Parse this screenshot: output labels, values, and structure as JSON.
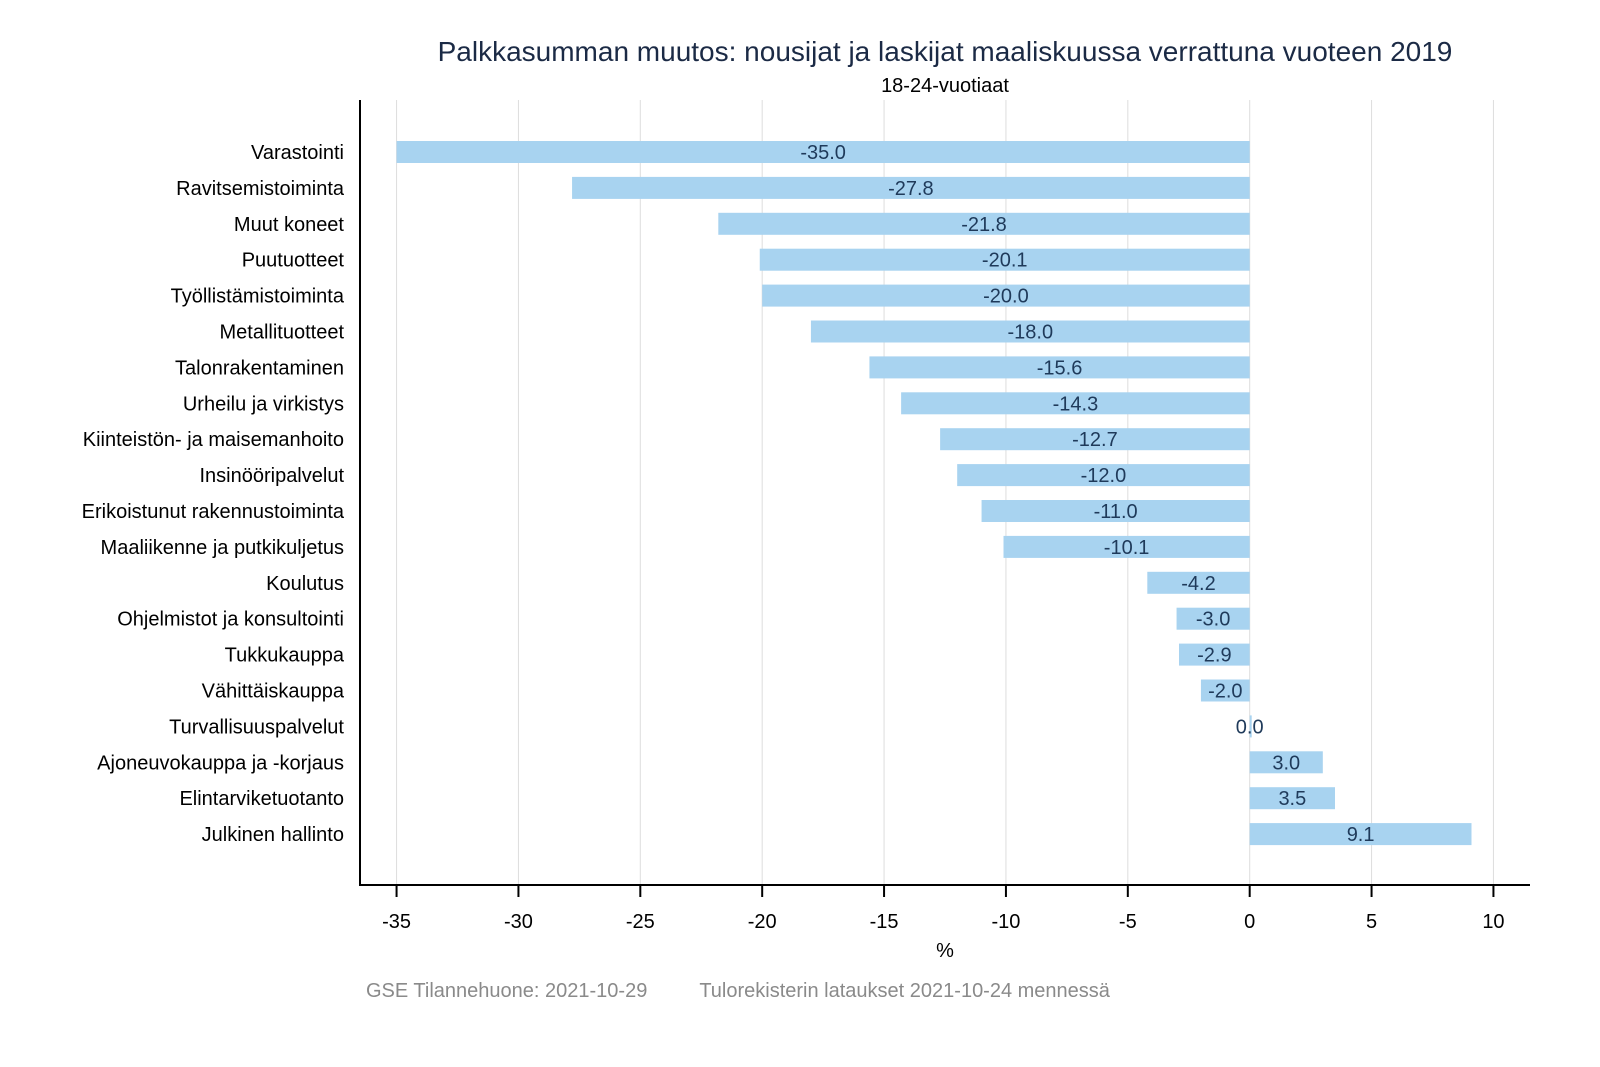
{
  "chart_data": {
    "type": "bar",
    "orientation": "horizontal",
    "title": "Palkkasumman muutos: nousijat ja laskijat maaliskuussa verrattuna vuoteen 2019",
    "subtitle": "18-24-vuotiaat",
    "xlabel": "%",
    "ylabel": "",
    "xlim": [
      -36.5,
      11.5
    ],
    "xticks": [
      -35,
      -30,
      -25,
      -20,
      -15,
      -10,
      -5,
      0,
      5,
      10
    ],
    "grid": true,
    "categories": [
      "Varastointi",
      "Ravitsemistoiminta",
      "Muut koneet",
      "Puutuotteet",
      "Työllistämistoiminta",
      "Metallituotteet",
      "Talonrakentaminen",
      "Urheilu ja virkistys",
      "Kiinteistön- ja maisemanhoito",
      "Insinööripalvelut",
      "Erikoistunut rakennustoiminta",
      "Maaliikenne ja putkikuljetus",
      "Koulutus",
      "Ohjelmistot ja konsultointi",
      "Tukkukauppa",
      "Vähittäiskauppa",
      "Turvallisuuspalvelut",
      "Ajoneuvokauppa ja -korjaus",
      "Elintarviketuotanto",
      "Julkinen hallinto"
    ],
    "values": [
      -35.0,
      -27.8,
      -21.8,
      -20.1,
      -20.0,
      -18.0,
      -15.6,
      -14.3,
      -12.7,
      -12.0,
      -11.0,
      -10.1,
      -4.2,
      -3.0,
      -2.9,
      -2.0,
      0.0,
      3.0,
      3.5,
      9.1
    ],
    "data_labels": [
      "-35.0",
      "-27.8",
      "-21.8",
      "-20.1",
      "-20.0",
      "-18.0",
      "-15.6",
      "-14.3",
      "-12.7",
      "-12.0",
      "-11.0",
      "-10.1",
      "-4.2",
      "-3.0",
      "-2.9",
      "-2.0",
      "0.0",
      "3.0",
      "3.5",
      "9.1"
    ],
    "bar_color": "#a8d3f0",
    "label_color": "#1f3a5a"
  },
  "footer": {
    "source": "GSE Tilannehuone: 2021-10-29",
    "note": "Tulorekisterin lataukset 2021-10-24 mennessä"
  }
}
